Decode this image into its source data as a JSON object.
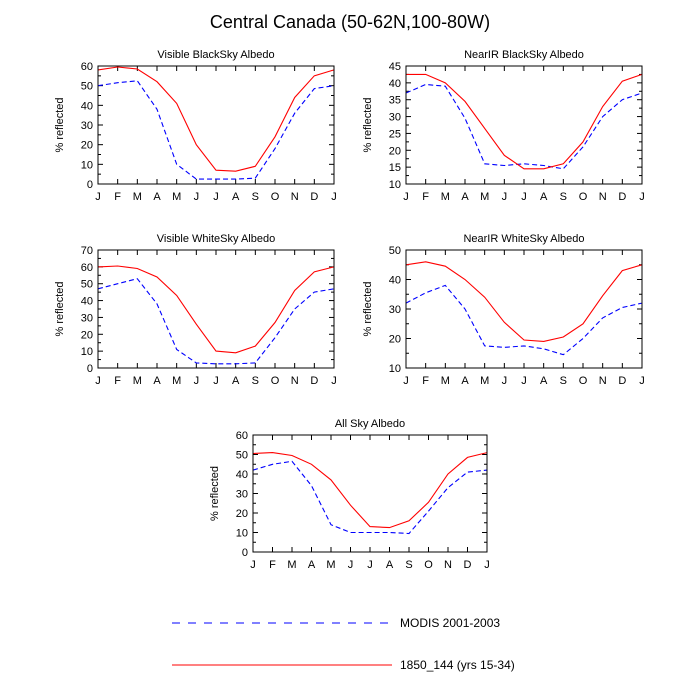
{
  "title": "Central Canada (50-62N,100-80W)",
  "chart_data": [
    {
      "type": "line",
      "title": "Visible BlackSky Albedo",
      "ylabel": "% reflected",
      "categories": [
        "J",
        "F",
        "M",
        "A",
        "M",
        "J",
        "J",
        "A",
        "S",
        "O",
        "N",
        "D",
        "J"
      ],
      "ylim": [
        0,
        60
      ],
      "yticks": [
        0,
        10,
        20,
        30,
        40,
        50,
        60
      ],
      "series": [
        {
          "name": "MODIS 2001-2003",
          "color": "#0000ff",
          "dash": true,
          "values": [
            50,
            51.5,
            52.5,
            38,
            10,
            2.5,
            2.5,
            2.5,
            3,
            18,
            36,
            48.5,
            50
          ]
        },
        {
          "name": "1850_144 (yrs 15-34)",
          "color": "#ff0000",
          "dash": false,
          "values": [
            58,
            59.5,
            58.5,
            52,
            41,
            20,
            7,
            6.5,
            9,
            24,
            44,
            55,
            58
          ]
        }
      ]
    },
    {
      "type": "line",
      "title": "NearIR BlackSky Albedo",
      "ylabel": "% reflected",
      "categories": [
        "J",
        "F",
        "M",
        "A",
        "M",
        "J",
        "J",
        "A",
        "S",
        "O",
        "N",
        "D",
        "J"
      ],
      "ylim": [
        10,
        45
      ],
      "yticks": [
        10,
        15,
        20,
        25,
        30,
        35,
        40,
        45
      ],
      "series": [
        {
          "name": "MODIS 2001-2003",
          "color": "#0000ff",
          "dash": true,
          "values": [
            37,
            39.5,
            39,
            29.5,
            16,
            15.5,
            16,
            15.5,
            14.5,
            21,
            30,
            35,
            37
          ]
        },
        {
          "name": "1850_144 (yrs 15-34)",
          "color": "#ff0000",
          "dash": false,
          "values": [
            42.5,
            42.5,
            40,
            34.5,
            26.5,
            18.5,
            14.5,
            14.5,
            16,
            22.5,
            33,
            40.5,
            42.5
          ]
        }
      ]
    },
    {
      "type": "line",
      "title": "Visible WhiteSky Albedo",
      "ylabel": "% reflected",
      "categories": [
        "J",
        "F",
        "M",
        "A",
        "M",
        "J",
        "J",
        "A",
        "S",
        "O",
        "N",
        "D",
        "J"
      ],
      "ylim": [
        0,
        70
      ],
      "yticks": [
        0,
        10,
        20,
        30,
        40,
        50,
        60,
        70
      ],
      "series": [
        {
          "name": "MODIS 2001-2003",
          "color": "#0000ff",
          "dash": true,
          "values": [
            47,
            50,
            53,
            38,
            11,
            3,
            2.5,
            2.5,
            3,
            18,
            35,
            45,
            47
          ]
        },
        {
          "name": "1850_144 (yrs 15-34)",
          "color": "#ff0000",
          "dash": false,
          "values": [
            60,
            60.5,
            59,
            54,
            43,
            26,
            10,
            9,
            13,
            27,
            46,
            57,
            60
          ]
        }
      ]
    },
    {
      "type": "line",
      "title": "NearIR WhiteSky Albedo",
      "ylabel": "% reflected",
      "categories": [
        "J",
        "F",
        "M",
        "A",
        "M",
        "J",
        "J",
        "A",
        "S",
        "O",
        "N",
        "D",
        "J"
      ],
      "ylim": [
        10,
        50
      ],
      "yticks": [
        10,
        20,
        30,
        40,
        50
      ],
      "series": [
        {
          "name": "MODIS 2001-2003",
          "color": "#0000ff",
          "dash": true,
          "values": [
            32,
            35.5,
            38,
            30,
            17.5,
            17,
            17.5,
            16.5,
            14.5,
            20,
            27,
            30.5,
            32
          ]
        },
        {
          "name": "1850_144 (yrs 15-34)",
          "color": "#ff0000",
          "dash": false,
          "values": [
            45,
            46,
            44.5,
            40,
            34,
            25.5,
            19.5,
            19,
            20.5,
            25,
            34.5,
            43,
            45
          ]
        }
      ]
    },
    {
      "type": "line",
      "title": "All Sky Albedo",
      "ylabel": "% reflected",
      "categories": [
        "J",
        "F",
        "M",
        "A",
        "M",
        "J",
        "J",
        "A",
        "S",
        "O",
        "N",
        "D",
        "J"
      ],
      "ylim": [
        0,
        60
      ],
      "yticks": [
        0,
        10,
        20,
        30,
        40,
        50,
        60
      ],
      "series": [
        {
          "name": "MODIS 2001-2003",
          "color": "#0000ff",
          "dash": true,
          "values": [
            42,
            45,
            46.5,
            34,
            14,
            10,
            10,
            10,
            9.5,
            21,
            33,
            41,
            42
          ]
        },
        {
          "name": "1850_144 (yrs 15-34)",
          "color": "#ff0000",
          "dash": false,
          "values": [
            50.5,
            51,
            49.5,
            45,
            37,
            24,
            13,
            12.5,
            16,
            25.5,
            40,
            48.5,
            51
          ]
        }
      ]
    }
  ],
  "legend": [
    {
      "label": "MODIS 2001-2003",
      "color": "#0000ff",
      "dash": true
    },
    {
      "label": "1850_144 (yrs 15-34)",
      "color": "#ff0000",
      "dash": false
    }
  ]
}
